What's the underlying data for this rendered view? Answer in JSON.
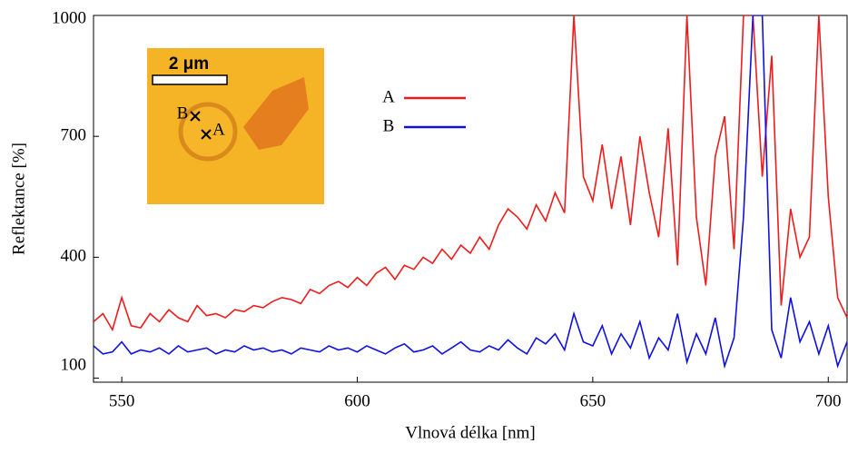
{
  "chart_data": {
    "type": "line",
    "x_label": "Vlnová délka [nm]",
    "y_label": "Reflektance [%]",
    "x": [
      544,
      546,
      548,
      550,
      552,
      554,
      556,
      558,
      560,
      562,
      564,
      566,
      568,
      570,
      572,
      574,
      576,
      578,
      580,
      582,
      584,
      586,
      588,
      590,
      592,
      594,
      596,
      598,
      600,
      602,
      604,
      606,
      608,
      610,
      612,
      614,
      616,
      618,
      620,
      622,
      624,
      626,
      628,
      630,
      632,
      634,
      636,
      638,
      640,
      642,
      644,
      646,
      648,
      650,
      652,
      654,
      656,
      658,
      660,
      662,
      664,
      666,
      668,
      670,
      672,
      674,
      676,
      678,
      680,
      682,
      684,
      686,
      688,
      690,
      692,
      694,
      696,
      698,
      700,
      702,
      704
    ],
    "series": [
      {
        "name": "A",
        "color": "#ee1c1c",
        "values": [
          240,
          260,
          220,
          300,
          230,
          225,
          260,
          240,
          270,
          250,
          240,
          280,
          255,
          260,
          250,
          270,
          265,
          280,
          275,
          290,
          300,
          295,
          285,
          320,
          310,
          330,
          340,
          325,
          350,
          330,
          360,
          375,
          345,
          380,
          370,
          400,
          385,
          420,
          395,
          430,
          410,
          450,
          420,
          480,
          520,
          500,
          470,
          530,
          490,
          560,
          510,
          1000,
          600,
          540,
          680,
          520,
          650,
          480,
          700,
          560,
          450,
          720,
          380,
          1000,
          500,
          330,
          650,
          750,
          420,
          1000,
          1000,
          600,
          900,
          280,
          520,
          400,
          450,
          1000,
          550,
          300,
          250
        ]
      },
      {
        "name": "B",
        "color": "#1010e0",
        "values": [
          180,
          160,
          165,
          190,
          160,
          170,
          165,
          175,
          160,
          180,
          165,
          170,
          175,
          160,
          170,
          165,
          180,
          170,
          175,
          165,
          170,
          160,
          175,
          170,
          165,
          180,
          170,
          175,
          165,
          180,
          170,
          160,
          175,
          185,
          165,
          170,
          180,
          160,
          175,
          190,
          170,
          165,
          180,
          170,
          195,
          175,
          160,
          200,
          185,
          210,
          170,
          260,
          190,
          180,
          230,
          160,
          210,
          175,
          240,
          150,
          200,
          170,
          260,
          140,
          210,
          160,
          250,
          130,
          200,
          500,
          1000,
          1000,
          220,
          150,
          300,
          190,
          240,
          160,
          230,
          130,
          190
        ]
      }
    ],
    "xlim": [
      544,
      704
    ],
    "ylim": [
      90,
      1000
    ],
    "xticks": [
      550,
      600,
      650,
      700
    ],
    "yticks": [
      100,
      400,
      700,
      1000
    ],
    "inset": {
      "scale": "2 μm",
      "point_a": "A",
      "point_b": "B"
    }
  }
}
